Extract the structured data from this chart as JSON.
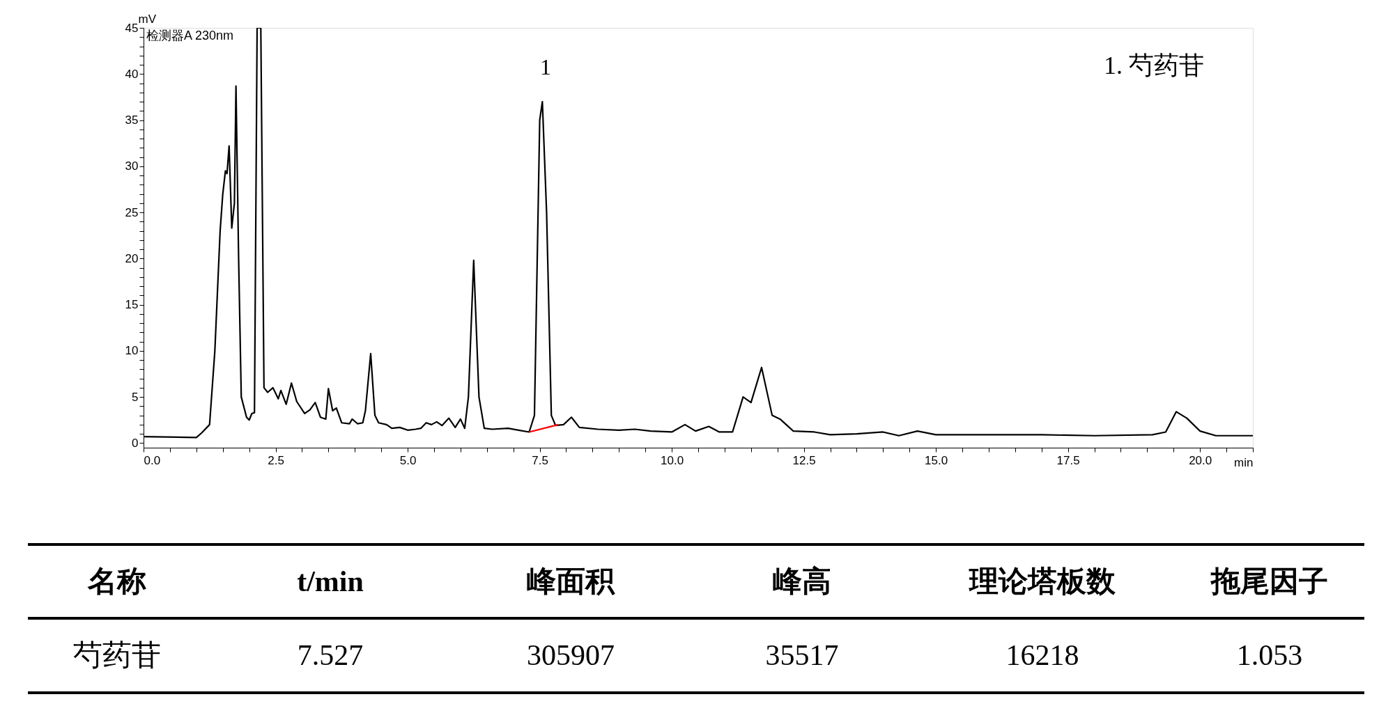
{
  "chart_data": {
    "type": "line",
    "xlabel": "min",
    "ylabel": "mV",
    "xlim": [
      0,
      21.0
    ],
    "ylim": [
      -0.5,
      45
    ],
    "xticks": [
      {
        "value": 0,
        "label": "0.0"
      },
      {
        "value": 0.5,
        "label": null
      },
      {
        "value": 1,
        "label": null
      },
      {
        "value": 1.5,
        "label": null
      },
      {
        "value": 2,
        "label": null
      },
      {
        "value": 2.5,
        "label": "2.5"
      },
      {
        "value": 3,
        "label": null
      },
      {
        "value": 3.5,
        "label": null
      },
      {
        "value": 4,
        "label": null
      },
      {
        "value": 4.5,
        "label": null
      },
      {
        "value": 5,
        "label": "5.0"
      },
      {
        "value": 5.5,
        "label": null
      },
      {
        "value": 6,
        "label": null
      },
      {
        "value": 6.5,
        "label": null
      },
      {
        "value": 7,
        "label": null
      },
      {
        "value": 7.5,
        "label": "7.5"
      },
      {
        "value": 8,
        "label": null
      },
      {
        "value": 8.5,
        "label": null
      },
      {
        "value": 9,
        "label": null
      },
      {
        "value": 9.5,
        "label": null
      },
      {
        "value": 10,
        "label": "10.0"
      },
      {
        "value": 10.5,
        "label": null
      },
      {
        "value": 11,
        "label": null
      },
      {
        "value": 11.5,
        "label": null
      },
      {
        "value": 12,
        "label": null
      },
      {
        "value": 12.5,
        "label": "12.5"
      },
      {
        "value": 13,
        "label": null
      },
      {
        "value": 13.5,
        "label": null
      },
      {
        "value": 14,
        "label": null
      },
      {
        "value": 14.5,
        "label": null
      },
      {
        "value": 15,
        "label": "15.0"
      },
      {
        "value": 15.5,
        "label": null
      },
      {
        "value": 16,
        "label": null
      },
      {
        "value": 16.5,
        "label": null
      },
      {
        "value": 17,
        "label": null
      },
      {
        "value": 17.5,
        "label": "17.5"
      },
      {
        "value": 18,
        "label": null
      },
      {
        "value": 18.5,
        "label": null
      },
      {
        "value": 19,
        "label": null
      },
      {
        "value": 19.5,
        "label": null
      },
      {
        "value": 20,
        "label": "20.0"
      },
      {
        "value": 20.5,
        "label": null
      },
      {
        "value": 21,
        "label": null
      }
    ],
    "yticks": [
      0,
      {
        "value": 1,
        "label": null
      },
      {
        "value": 2,
        "label": null
      },
      {
        "value": 3,
        "label": null
      },
      {
        "value": 4,
        "label": null
      },
      5,
      {
        "value": 6,
        "label": null
      },
      {
        "value": 7,
        "label": null
      },
      {
        "value": 8,
        "label": null
      },
      {
        "value": 9,
        "label": null
      },
      10,
      {
        "value": 11,
        "label": null
      },
      {
        "value": 12,
        "label": null
      },
      {
        "value": 13,
        "label": null
      },
      {
        "value": 14,
        "label": null
      },
      15,
      {
        "value": 16,
        "label": null
      },
      {
        "value": 17,
        "label": null
      },
      {
        "value": 18,
        "label": null
      },
      {
        "value": 19,
        "label": null
      },
      20,
      {
        "value": 21,
        "label": null
      },
      {
        "value": 22,
        "label": null
      },
      {
        "value": 23,
        "label": null
      },
      {
        "value": 24,
        "label": null
      },
      25,
      {
        "value": 26,
        "label": null
      },
      {
        "value": 27,
        "label": null
      },
      {
        "value": 28,
        "label": null
      },
      {
        "value": 29,
        "label": null
      },
      30,
      {
        "value": 31,
        "label": null
      },
      {
        "value": 32,
        "label": null
      },
      {
        "value": 33,
        "label": null
      },
      {
        "value": 34,
        "label": null
      },
      35,
      {
        "value": 36,
        "label": null
      },
      {
        "value": 37,
        "label": null
      },
      {
        "value": 38,
        "label": null
      },
      {
        "value": 39,
        "label": null
      },
      40,
      {
        "value": 41,
        "label": null
      },
      {
        "value": 42,
        "label": null
      },
      {
        "value": 43,
        "label": null
      },
      {
        "value": 44,
        "label": null
      },
      45
    ],
    "grid": false,
    "series": [
      {
        "color": "#000000",
        "x": [
          0,
          1.0,
          1.1,
          1.25,
          1.35,
          1.45,
          1.5,
          1.55,
          1.58,
          1.62,
          1.67,
          1.72,
          1.75,
          1.8,
          1.85,
          1.95,
          2.0,
          2.05,
          2.1,
          2.15,
          2.22,
          2.28,
          2.35,
          2.45,
          2.55,
          2.6,
          2.7,
          2.8,
          2.9,
          3.05,
          3.15,
          3.25,
          3.35,
          3.45,
          3.5,
          3.58,
          3.65,
          3.75,
          3.9,
          3.95,
          4.05,
          4.15,
          4.2,
          4.3,
          4.38,
          4.45,
          4.6,
          4.7,
          4.85,
          5.0,
          5.15,
          5.25,
          5.35,
          5.45,
          5.55,
          5.65,
          5.78,
          5.9,
          6.0,
          6.08,
          6.15,
          6.25,
          6.35,
          6.45,
          6.6,
          6.9,
          7.1,
          7.3,
          7.4,
          7.5,
          7.55,
          7.63,
          7.72,
          7.8,
          7.95,
          8.1,
          8.25,
          8.6,
          9.0,
          9.3,
          9.6,
          10.0,
          10.25,
          10.45,
          10.7,
          10.9,
          11.15,
          11.35,
          11.5,
          11.7,
          11.9,
          12.05,
          12.3,
          12.7,
          13.0,
          13.5,
          14.0,
          14.3,
          14.65,
          15.0,
          16.0,
          17.0,
          18.0,
          19.1,
          19.35,
          19.55,
          19.75,
          20.0,
          20.3,
          21.0
        ],
        "values": [
          0.7,
          0.6,
          1.1,
          2,
          10,
          23,
          27,
          29.5,
          29.2,
          32.2,
          23.3,
          26,
          38.7,
          20,
          5,
          2.8,
          2.5,
          3.2,
          3.3,
          45,
          45,
          6,
          5.5,
          6,
          4.8,
          5.7,
          4.2,
          6.5,
          4.5,
          3.2,
          3.6,
          4.4,
          2.8,
          2.6,
          5.9,
          3.5,
          3.8,
          2.2,
          2.1,
          2.6,
          2.1,
          2.2,
          3.5,
          9.7,
          3,
          2.2,
          2,
          1.6,
          1.7,
          1.4,
          1.5,
          1.6,
          2.2,
          2.0,
          2.3,
          1.9,
          2.7,
          1.7,
          2.6,
          1.6,
          5,
          19.8,
          5,
          1.6,
          1.5,
          1.6,
          1.4,
          1.2,
          3,
          35,
          37,
          25,
          3,
          1.9,
          2,
          2.8,
          1.7,
          1.5,
          1.4,
          1.5,
          1.3,
          1.2,
          2.0,
          1.3,
          1.8,
          1.2,
          1.2,
          5.0,
          4.4,
          8.2,
          3.0,
          2.6,
          1.3,
          1.2,
          0.9,
          1.0,
          1.2,
          0.8,
          1.3,
          0.9,
          0.9,
          0.9,
          0.8,
          0.9,
          1.2,
          3.4,
          2.7,
          1.3,
          0.8,
          0.8
        ]
      },
      {
        "color": "#ff0000",
        "x": [
          7.3,
          7.85
        ],
        "values": [
          1.2,
          2.0
        ]
      }
    ],
    "annotations": [
      "检测器A 230nm",
      "1. 芍药苷",
      "1",
      "名称",
      "t/min",
      "峰面积",
      "峰高",
      "理论塔板数",
      "拖尾因子",
      "芍药苷",
      "7.527",
      "305907",
      "35517",
      "16218",
      "1.053"
    ]
  }
}
